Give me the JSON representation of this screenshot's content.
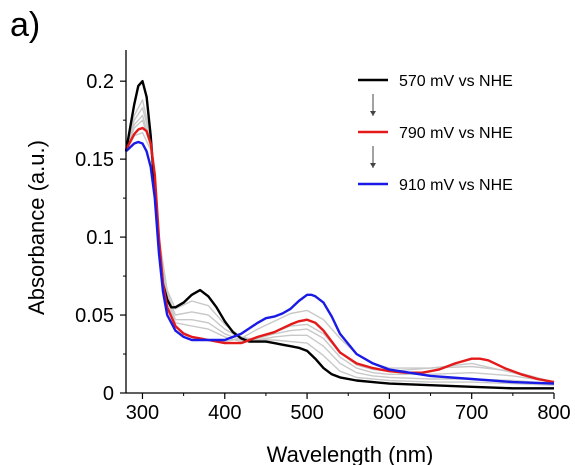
{
  "panel_label": "a)",
  "chart_data": {
    "type": "line",
    "xlabel": "Wavelength (nm)",
    "ylabel": "Absorbance (a.u.)",
    "xlim": [
      280,
      800
    ],
    "ylim": [
      0,
      0.22
    ],
    "xticks": [
      300,
      400,
      500,
      600,
      700,
      800
    ],
    "yticks": [
      0,
      0.05,
      0.1,
      0.15,
      0.2
    ],
    "ytick_labels": [
      "0",
      "0.05",
      "0.1",
      "0.15",
      "0.2"
    ],
    "legend_position": "top-right",
    "grid": false,
    "series": [
      {
        "name": "570 mV vs NHE",
        "color": "#000000",
        "x": [
          280,
          290,
          295,
          300,
          305,
          310,
          315,
          320,
          325,
          330,
          335,
          340,
          350,
          360,
          370,
          380,
          390,
          400,
          410,
          420,
          430,
          440,
          450,
          460,
          470,
          480,
          490,
          500,
          510,
          520,
          530,
          540,
          560,
          580,
          600,
          650,
          700,
          750,
          800
        ],
        "y": [
          0.155,
          0.185,
          0.197,
          0.2,
          0.19,
          0.165,
          0.13,
          0.095,
          0.07,
          0.06,
          0.055,
          0.055,
          0.058,
          0.063,
          0.066,
          0.062,
          0.055,
          0.046,
          0.039,
          0.035,
          0.033,
          0.033,
          0.033,
          0.032,
          0.031,
          0.03,
          0.029,
          0.027,
          0.022,
          0.016,
          0.012,
          0.01,
          0.008,
          0.007,
          0.006,
          0.005,
          0.004,
          0.003,
          0.003
        ]
      },
      {
        "color": "#c8c8c8",
        "x": [
          280,
          290,
          300,
          310,
          320,
          330,
          340,
          360,
          380,
          400,
          420,
          440,
          460,
          480,
          500,
          520,
          540,
          560,
          580,
          600,
          650,
          700,
          750,
          800
        ],
        "y": [
          0.155,
          0.178,
          0.188,
          0.165,
          0.1,
          0.066,
          0.054,
          0.059,
          0.056,
          0.044,
          0.036,
          0.034,
          0.034,
          0.033,
          0.032,
          0.024,
          0.014,
          0.01,
          0.009,
          0.008,
          0.007,
          0.007,
          0.006,
          0.005
        ]
      },
      {
        "color": "#c8c8c8",
        "x": [
          280,
          290,
          300,
          310,
          320,
          330,
          340,
          360,
          380,
          400,
          420,
          440,
          460,
          480,
          500,
          520,
          540,
          560,
          580,
          600,
          650,
          700,
          750,
          800
        ],
        "y": [
          0.155,
          0.175,
          0.183,
          0.163,
          0.1,
          0.064,
          0.05,
          0.052,
          0.05,
          0.041,
          0.035,
          0.034,
          0.036,
          0.037,
          0.037,
          0.03,
          0.019,
          0.013,
          0.011,
          0.01,
          0.009,
          0.009,
          0.008,
          0.006
        ]
      },
      {
        "color": "#c8c8c8",
        "x": [
          280,
          290,
          300,
          310,
          320,
          330,
          340,
          360,
          380,
          400,
          420,
          440,
          460,
          480,
          500,
          520,
          540,
          560,
          580,
          600,
          650,
          700,
          750,
          800
        ],
        "y": [
          0.155,
          0.172,
          0.178,
          0.16,
          0.099,
          0.062,
          0.047,
          0.047,
          0.045,
          0.038,
          0.034,
          0.035,
          0.038,
          0.04,
          0.041,
          0.035,
          0.023,
          0.016,
          0.013,
          0.012,
          0.012,
          0.013,
          0.011,
          0.007
        ]
      },
      {
        "color": "#c8c8c8",
        "x": [
          280,
          290,
          300,
          310,
          320,
          330,
          340,
          360,
          380,
          400,
          420,
          440,
          460,
          480,
          500,
          520,
          540,
          560,
          580,
          600,
          650,
          700,
          750,
          800
        ],
        "y": [
          0.155,
          0.17,
          0.175,
          0.158,
          0.098,
          0.06,
          0.045,
          0.043,
          0.041,
          0.036,
          0.033,
          0.035,
          0.039,
          0.043,
          0.044,
          0.038,
          0.026,
          0.018,
          0.015,
          0.014,
          0.016,
          0.017,
          0.014,
          0.007
        ]
      },
      {
        "name": "790 mV vs NHE",
        "color": "#e41a1a",
        "x": [
          280,
          290,
          295,
          300,
          305,
          310,
          315,
          320,
          325,
          330,
          340,
          350,
          360,
          370,
          380,
          400,
          420,
          440,
          460,
          480,
          490,
          500,
          510,
          520,
          530,
          540,
          560,
          580,
          600,
          620,
          640,
          660,
          680,
          700,
          710,
          720,
          740,
          760,
          780,
          800
        ],
        "y": [
          0.156,
          0.166,
          0.169,
          0.17,
          0.168,
          0.16,
          0.14,
          0.1,
          0.07,
          0.055,
          0.043,
          0.038,
          0.036,
          0.035,
          0.034,
          0.032,
          0.032,
          0.036,
          0.039,
          0.044,
          0.046,
          0.047,
          0.045,
          0.04,
          0.033,
          0.026,
          0.019,
          0.016,
          0.014,
          0.013,
          0.013,
          0.015,
          0.019,
          0.022,
          0.022,
          0.021,
          0.016,
          0.012,
          0.009,
          0.007
        ]
      },
      {
        "color": "#c8c8c8",
        "x": [
          280,
          290,
          300,
          310,
          320,
          330,
          340,
          360,
          380,
          400,
          420,
          440,
          460,
          480,
          500,
          520,
          540,
          560,
          580,
          600,
          650,
          700,
          750,
          800
        ],
        "y": [
          0.155,
          0.165,
          0.167,
          0.156,
          0.1,
          0.06,
          0.042,
          0.036,
          0.034,
          0.033,
          0.035,
          0.041,
          0.046,
          0.051,
          0.053,
          0.047,
          0.035,
          0.025,
          0.019,
          0.016,
          0.016,
          0.019,
          0.013,
          0.006
        ]
      },
      {
        "name": "910 mV vs NHE",
        "color": "#1a1ae6",
        "x": [
          280,
          290,
          295,
          300,
          305,
          310,
          315,
          320,
          325,
          330,
          340,
          350,
          360,
          370,
          380,
          400,
          420,
          440,
          450,
          460,
          470,
          480,
          490,
          500,
          505,
          510,
          520,
          530,
          540,
          560,
          580,
          600,
          650,
          700,
          750,
          800
        ],
        "y": [
          0.155,
          0.16,
          0.161,
          0.16,
          0.155,
          0.145,
          0.125,
          0.09,
          0.065,
          0.05,
          0.04,
          0.036,
          0.034,
          0.034,
          0.034,
          0.034,
          0.038,
          0.045,
          0.048,
          0.049,
          0.051,
          0.054,
          0.059,
          0.063,
          0.063,
          0.062,
          0.058,
          0.049,
          0.038,
          0.025,
          0.019,
          0.015,
          0.011,
          0.009,
          0.007,
          0.006
        ]
      }
    ]
  }
}
